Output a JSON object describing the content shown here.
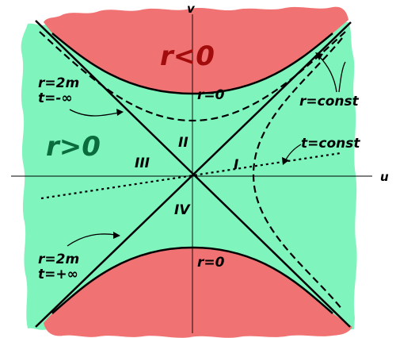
{
  "axes": {
    "u_label": "u",
    "v_label": "v"
  },
  "regions": {
    "positive_label": "r>0",
    "negative_label": "r<0",
    "roman": {
      "I": "I",
      "II": "II",
      "III": "III",
      "IV": "IV"
    }
  },
  "curves": {
    "singularity_top_label": "r=0",
    "singularity_bottom_label": "r=0",
    "r_const_label": "r=const",
    "t_const_label": "t=const"
  },
  "horizons": {
    "past_r": "r=2m",
    "past_t": "t=-∞",
    "future_r": "r=2m",
    "future_t": "t=+∞"
  },
  "colors": {
    "green_region": "#7ff5bd",
    "red_region": "#f07272",
    "ink": "#000000",
    "r_neg_text": "#a30c0c",
    "r_pos_text": "#0b6b3c"
  }
}
